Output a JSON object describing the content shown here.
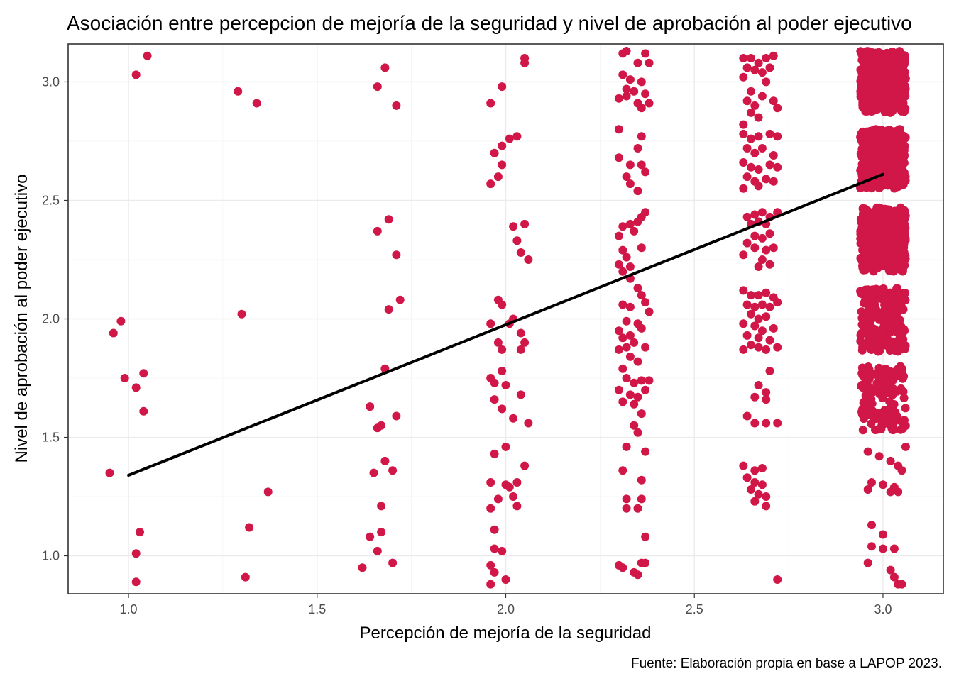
{
  "chart_data": {
    "type": "scatter",
    "title": "Asociación entre percepcion de mejoría de la seguridad y nivel de aprobación al poder ejecutivo",
    "xlabel": "Percepción de mejoría de la seguridad",
    "ylabel": "Nivel de aprobación al poder ejecutivo",
    "caption": "Fuente: Elaboración propia en base a LAPOP 2023.",
    "xlim": [
      0.84,
      3.16
    ],
    "ylim": [
      0.84,
      3.16
    ],
    "x_ticks": [
      1.0,
      1.5,
      2.0,
      2.5,
      3.0
    ],
    "x_tick_labels": [
      "1.0",
      "1.5",
      "2.0",
      "2.5",
      "3.0"
    ],
    "y_ticks": [
      1.0,
      1.5,
      2.0,
      2.5,
      3.0
    ],
    "y_tick_labels": [
      "1.0",
      "1.5",
      "2.0",
      "2.5",
      "3.0"
    ],
    "grid": true,
    "point_color": "#d01747",
    "line_color": "#000000",
    "regression_line": {
      "x": [
        1.0,
        3.0
      ],
      "y": [
        1.34,
        2.61
      ]
    },
    "points": [
      [
        0.95,
        1.35
      ],
      [
        0.96,
        1.94
      ],
      [
        0.98,
        1.99
      ],
      [
        0.99,
        1.75
      ],
      [
        1.02,
        3.03
      ],
      [
        1.05,
        3.11
      ],
      [
        1.03,
        1.1
      ],
      [
        1.02,
        1.01
      ],
      [
        1.02,
        0.89
      ],
      [
        1.04,
        1.77
      ],
      [
        1.02,
        1.71
      ],
      [
        1.04,
        1.61
      ],
      [
        1.29,
        2.96
      ],
      [
        1.34,
        2.91
      ],
      [
        1.3,
        2.02
      ],
      [
        1.32,
        1.12
      ],
      [
        1.31,
        0.91
      ],
      [
        1.37,
        1.27
      ],
      [
        1.64,
        1.63
      ],
      [
        1.67,
        1.55
      ],
      [
        1.68,
        1.4
      ],
      [
        1.65,
        1.35
      ],
      [
        1.7,
        1.36
      ],
      [
        1.71,
        1.59
      ],
      [
        1.67,
        1.21
      ],
      [
        1.67,
        1.1
      ],
      [
        1.64,
        1.08
      ],
      [
        1.66,
        1.02
      ],
      [
        1.62,
        0.95
      ],
      [
        1.7,
        0.97
      ],
      [
        1.66,
        2.98
      ],
      [
        1.68,
        3.06
      ],
      [
        1.71,
        2.9
      ],
      [
        1.66,
        2.37
      ],
      [
        1.69,
        2.42
      ],
      [
        1.71,
        2.27
      ],
      [
        1.69,
        2.04
      ],
      [
        1.72,
        2.08
      ],
      [
        1.68,
        1.79
      ],
      [
        1.66,
        1.54
      ],
      [
        1.96,
        2.91
      ],
      [
        1.99,
        2.98
      ],
      [
        1.97,
        2.7
      ],
      [
        1.99,
        2.73
      ],
      [
        2.01,
        2.76
      ],
      [
        2.03,
        2.77
      ],
      [
        1.99,
        2.65
      ],
      [
        1.96,
        2.57
      ],
      [
        1.98,
        2.6
      ],
      [
        2.05,
        3.1
      ],
      [
        2.05,
        3.08
      ],
      [
        2.02,
        2.39
      ],
      [
        2.05,
        2.4
      ],
      [
        2.03,
        2.33
      ],
      [
        2.04,
        2.28
      ],
      [
        2.06,
        2.25
      ],
      [
        1.98,
        2.08
      ],
      [
        1.99,
        2.06
      ],
      [
        1.96,
        1.98
      ],
      [
        2.01,
        1.98
      ],
      [
        2.02,
        2.0
      ],
      [
        1.98,
        1.9
      ],
      [
        2.04,
        1.94
      ],
      [
        2.05,
        1.9
      ],
      [
        2.04,
        1.87
      ],
      [
        1.99,
        1.87
      ],
      [
        1.96,
        1.75
      ],
      [
        1.97,
        1.73
      ],
      [
        1.99,
        1.78
      ],
      [
        2.0,
        1.72
      ],
      [
        1.97,
        1.66
      ],
      [
        2.04,
        1.68
      ],
      [
        1.99,
        1.62
      ],
      [
        2.02,
        1.58
      ],
      [
        2.06,
        1.56
      ],
      [
        1.97,
        1.43
      ],
      [
        2.0,
        1.46
      ],
      [
        2.05,
        1.38
      ],
      [
        1.96,
        1.31
      ],
      [
        2.0,
        1.3
      ],
      [
        2.01,
        1.29
      ],
      [
        2.03,
        1.31
      ],
      [
        1.98,
        1.24
      ],
      [
        2.02,
        1.25
      ],
      [
        2.03,
        1.21
      ],
      [
        1.96,
        1.2
      ],
      [
        1.97,
        1.11
      ],
      [
        1.97,
        1.03
      ],
      [
        1.99,
        1.02
      ],
      [
        1.96,
        0.96
      ],
      [
        1.97,
        0.93
      ],
      [
        1.96,
        0.88
      ],
      [
        2.0,
        0.9
      ],
      [
        2.31,
        3.12
      ],
      [
        2.32,
        3.13
      ],
      [
        2.35,
        3.08
      ],
      [
        2.37,
        3.12
      ],
      [
        2.38,
        3.08
      ],
      [
        2.31,
        3.03
      ],
      [
        2.33,
        3.01
      ],
      [
        2.36,
        3.0
      ],
      [
        2.32,
        2.97
      ],
      [
        2.34,
        2.96
      ],
      [
        2.37,
        2.95
      ],
      [
        2.3,
        2.93
      ],
      [
        2.32,
        2.94
      ],
      [
        2.35,
        2.91
      ],
      [
        2.38,
        2.91
      ],
      [
        2.36,
        2.89
      ],
      [
        2.3,
        2.8
      ],
      [
        2.36,
        2.77
      ],
      [
        2.35,
        2.72
      ],
      [
        2.3,
        2.68
      ],
      [
        2.33,
        2.65
      ],
      [
        2.36,
        2.65
      ],
      [
        2.37,
        2.62
      ],
      [
        2.32,
        2.6
      ],
      [
        2.33,
        2.57
      ],
      [
        2.35,
        2.54
      ],
      [
        2.31,
        2.39
      ],
      [
        2.33,
        2.4
      ],
      [
        2.35,
        2.41
      ],
      [
        2.36,
        2.43
      ],
      [
        2.37,
        2.45
      ],
      [
        2.3,
        2.35
      ],
      [
        2.34,
        2.37
      ],
      [
        2.31,
        2.29
      ],
      [
        2.32,
        2.26
      ],
      [
        2.3,
        2.23
      ],
      [
        2.33,
        2.22
      ],
      [
        2.36,
        2.3
      ],
      [
        2.31,
        2.2
      ],
      [
        2.33,
        2.17
      ],
      [
        2.35,
        2.13
      ],
      [
        2.36,
        2.1
      ],
      [
        2.33,
        2.05
      ],
      [
        2.37,
        2.07
      ],
      [
        2.31,
        2.06
      ],
      [
        2.38,
        2.03
      ],
      [
        2.32,
        1.99
      ],
      [
        2.35,
        1.98
      ],
      [
        2.36,
        1.96
      ],
      [
        2.3,
        1.95
      ],
      [
        2.33,
        1.93
      ],
      [
        2.31,
        1.92
      ],
      [
        2.34,
        1.9
      ],
      [
        2.32,
        1.88
      ],
      [
        2.37,
        1.88
      ],
      [
        2.3,
        1.87
      ],
      [
        2.33,
        1.84
      ],
      [
        2.35,
        1.82
      ],
      [
        2.31,
        1.79
      ],
      [
        2.32,
        1.75
      ],
      [
        2.34,
        1.73
      ],
      [
        2.36,
        1.74
      ],
      [
        2.38,
        1.74
      ],
      [
        2.3,
        1.7
      ],
      [
        2.33,
        1.68
      ],
      [
        2.35,
        1.67
      ],
      [
        2.37,
        1.7
      ],
      [
        2.31,
        1.65
      ],
      [
        2.34,
        1.64
      ],
      [
        2.36,
        1.6
      ],
      [
        2.34,
        1.55
      ],
      [
        2.35,
        1.52
      ],
      [
        2.32,
        1.46
      ],
      [
        2.37,
        1.44
      ],
      [
        2.31,
        1.36
      ],
      [
        2.36,
        1.32
      ],
      [
        2.32,
        1.24
      ],
      [
        2.36,
        1.24
      ],
      [
        2.32,
        1.2
      ],
      [
        2.35,
        1.2
      ],
      [
        2.37,
        1.08
      ],
      [
        2.3,
        0.96
      ],
      [
        2.31,
        0.95
      ],
      [
        2.34,
        0.93
      ],
      [
        2.35,
        0.92
      ],
      [
        2.36,
        0.97
      ],
      [
        2.37,
        0.97
      ],
      [
        2.63,
        3.1
      ],
      [
        2.65,
        3.1
      ],
      [
        2.67,
        3.08
      ],
      [
        2.69,
        3.1
      ],
      [
        2.71,
        3.11
      ],
      [
        2.64,
        3.06
      ],
      [
        2.66,
        3.05
      ],
      [
        2.68,
        3.04
      ],
      [
        2.7,
        3.06
      ],
      [
        2.63,
        3.02
      ],
      [
        2.69,
        3.0
      ],
      [
        2.65,
        2.96
      ],
      [
        2.68,
        2.94
      ],
      [
        2.64,
        2.92
      ],
      [
        2.66,
        2.9
      ],
      [
        2.71,
        2.92
      ],
      [
        2.72,
        2.89
      ],
      [
        2.65,
        2.87
      ],
      [
        2.67,
        2.85
      ],
      [
        2.63,
        2.82
      ],
      [
        2.63,
        2.78
      ],
      [
        2.65,
        2.76
      ],
      [
        2.67,
        2.77
      ],
      [
        2.7,
        2.78
      ],
      [
        2.72,
        2.77
      ],
      [
        2.64,
        2.72
      ],
      [
        2.66,
        2.7
      ],
      [
        2.68,
        2.72
      ],
      [
        2.71,
        2.69
      ],
      [
        2.63,
        2.66
      ],
      [
        2.65,
        2.64
      ],
      [
        2.67,
        2.63
      ],
      [
        2.7,
        2.65
      ],
      [
        2.72,
        2.64
      ],
      [
        2.64,
        2.6
      ],
      [
        2.66,
        2.58
      ],
      [
        2.69,
        2.59
      ],
      [
        2.71,
        2.58
      ],
      [
        2.63,
        2.55
      ],
      [
        2.67,
        2.56
      ],
      [
        2.64,
        2.43
      ],
      [
        2.66,
        2.44
      ],
      [
        2.68,
        2.45
      ],
      [
        2.7,
        2.43
      ],
      [
        2.72,
        2.45
      ],
      [
        2.65,
        2.4
      ],
      [
        2.67,
        2.41
      ],
      [
        2.69,
        2.4
      ],
      [
        2.66,
        2.35
      ],
      [
        2.68,
        2.34
      ],
      [
        2.7,
        2.36
      ],
      [
        2.64,
        2.32
      ],
      [
        2.66,
        2.3
      ],
      [
        2.69,
        2.29
      ],
      [
        2.71,
        2.3
      ],
      [
        2.63,
        2.27
      ],
      [
        2.68,
        2.25
      ],
      [
        2.7,
        2.23
      ],
      [
        2.67,
        2.22
      ],
      [
        2.63,
        2.12
      ],
      [
        2.65,
        2.1
      ],
      [
        2.67,
        2.1
      ],
      [
        2.69,
        2.11
      ],
      [
        2.71,
        2.09
      ],
      [
        2.64,
        2.06
      ],
      [
        2.66,
        2.05
      ],
      [
        2.68,
        2.06
      ],
      [
        2.7,
        2.05
      ],
      [
        2.72,
        2.07
      ],
      [
        2.65,
        2.02
      ],
      [
        2.67,
        2.0
      ],
      [
        2.69,
        2.01
      ],
      [
        2.63,
        1.98
      ],
      [
        2.66,
        1.97
      ],
      [
        2.68,
        1.95
      ],
      [
        2.71,
        1.96
      ],
      [
        2.64,
        1.93
      ],
      [
        2.67,
        1.92
      ],
      [
        2.7,
        1.91
      ],
      [
        2.65,
        1.89
      ],
      [
        2.67,
        1.88
      ],
      [
        2.69,
        1.87
      ],
      [
        2.72,
        1.88
      ],
      [
        2.63,
        1.87
      ],
      [
        2.7,
        1.78
      ],
      [
        2.67,
        1.72
      ],
      [
        2.69,
        1.69
      ],
      [
        2.66,
        1.67
      ],
      [
        2.69,
        1.66
      ],
      [
        2.64,
        1.59
      ],
      [
        2.66,
        1.56
      ],
      [
        2.69,
        1.56
      ],
      [
        2.72,
        1.56
      ],
      [
        2.63,
        1.38
      ],
      [
        2.66,
        1.36
      ],
      [
        2.68,
        1.37
      ],
      [
        2.64,
        1.33
      ],
      [
        2.66,
        1.31
      ],
      [
        2.68,
        1.3
      ],
      [
        2.65,
        1.28
      ],
      [
        2.67,
        1.26
      ],
      [
        2.69,
        1.25
      ],
      [
        2.66,
        1.23
      ],
      [
        2.69,
        1.21
      ],
      [
        2.72,
        0.9
      ],
      [
        2.96,
        1.44
      ],
      [
        2.99,
        1.42
      ],
      [
        3.02,
        1.4
      ],
      [
        3.04,
        1.38
      ],
      [
        2.97,
        1.31
      ],
      [
        3.0,
        1.3
      ],
      [
        3.03,
        1.29
      ],
      [
        2.96,
        1.28
      ],
      [
        3.02,
        1.27
      ],
      [
        3.05,
        1.36
      ],
      [
        2.97,
        1.13
      ],
      [
        3.0,
        1.09
      ],
      [
        2.97,
        1.04
      ],
      [
        3.0,
        1.03
      ],
      [
        3.03,
        1.03
      ],
      [
        2.96,
        0.97
      ],
      [
        3.02,
        0.94
      ],
      [
        3.03,
        0.91
      ],
      [
        3.04,
        0.88
      ],
      [
        3.05,
        0.88
      ],
      [
        3.06,
        1.46
      ],
      [
        3.04,
        1.27
      ]
    ],
    "clusters": [
      {
        "x_range": [
          2.94,
          3.06
        ],
        "y_range": [
          2.87,
          3.13
        ],
        "count": 420
      },
      {
        "x_range": [
          2.94,
          3.06
        ],
        "y_range": [
          2.55,
          2.8
        ],
        "count": 380
      },
      {
        "x_range": [
          2.94,
          3.06
        ],
        "y_range": [
          2.2,
          2.47
        ],
        "count": 380
      },
      {
        "x_range": [
          2.94,
          3.06
        ],
        "y_range": [
          1.86,
          2.13
        ],
        "count": 200
      },
      {
        "x_range": [
          2.94,
          3.06
        ],
        "y_range": [
          1.53,
          1.8
        ],
        "count": 140
      }
    ]
  }
}
